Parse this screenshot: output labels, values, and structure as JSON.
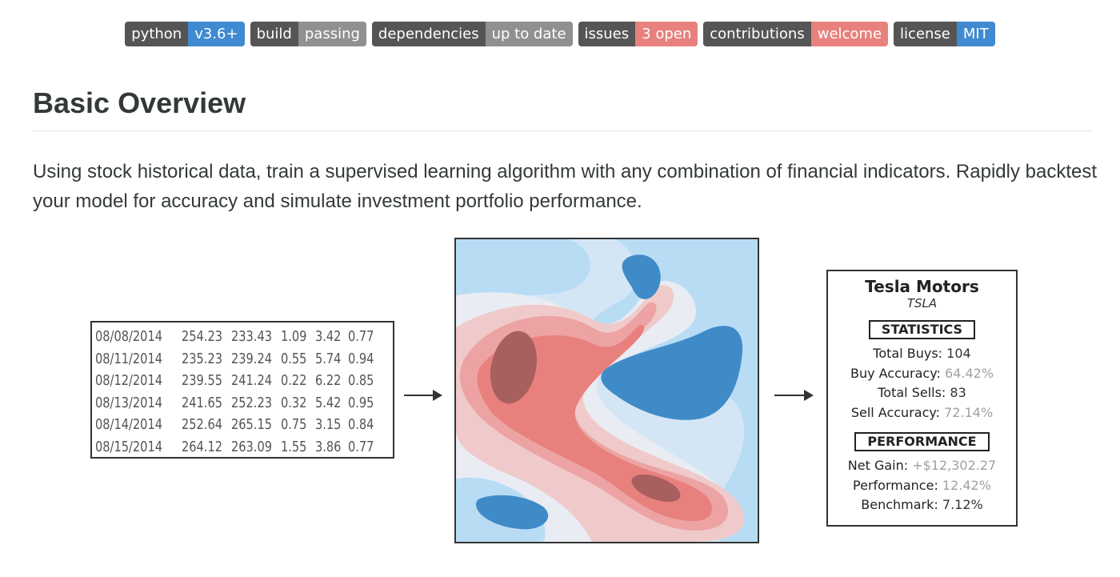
{
  "badges": [
    {
      "label": "python",
      "value": "v3.6+",
      "value_color": "#3f8ad0"
    },
    {
      "label": "build",
      "value": "passing",
      "value_color": "#909090"
    },
    {
      "label": "dependencies",
      "value": "up to date",
      "value_color": "#909090"
    },
    {
      "label": "issues",
      "value": "3 open",
      "value_color": "#e8817d"
    },
    {
      "label": "contributions",
      "value": "welcome",
      "value_color": "#e8817d"
    },
    {
      "label": "license",
      "value": "MIT",
      "value_color": "#3f8ad0"
    }
  ],
  "section": {
    "heading": "Basic Overview",
    "description": "Using stock historical data, train a supervised learning algorithm with any combination of financial indicators. Rapidly backtest your model for accuracy and simulate investment portfolio performance."
  },
  "data_table": {
    "rows": [
      [
        "08/08/2014",
        "254.23",
        "233.43",
        "1.09",
        "3.42",
        "0.77"
      ],
      [
        "08/11/2014",
        "235.23",
        "239.24",
        "0.55",
        "5.74",
        "0.94"
      ],
      [
        "08/12/2014",
        "239.55",
        "241.24",
        "0.22",
        "6.22",
        "0.85"
      ],
      [
        "08/13/2014",
        "241.65",
        "252.23",
        "0.32",
        "5.42",
        "0.95"
      ],
      [
        "08/14/2014",
        "252.64",
        "265.15",
        "0.75",
        "3.15",
        "0.84"
      ],
      [
        "08/15/2014",
        "264.12",
        "263.09",
        "1.55",
        "3.86",
        "0.77"
      ]
    ]
  },
  "heatmap_colors": {
    "blue_light": "#b9dcf5",
    "blue_mid": "#d4e6f5",
    "blue_dark": "#3f8bc8",
    "red_light": "#f0caca",
    "red_mid": "#eda3a3",
    "red_strong": "#e8817d",
    "red_dark": "#a85f5f",
    "neutral": "#e9ecf3"
  },
  "stats_card": {
    "company": "Tesla Motors",
    "ticker": "TSLA",
    "statistics_header": "STATISTICS",
    "statistics": [
      {
        "label": "Total Buys:",
        "value": "104",
        "muted": false
      },
      {
        "label": "Buy Accuracy:",
        "value": "64.42%",
        "muted": true
      },
      {
        "label": "Total Sells:",
        "value": "83",
        "muted": false
      },
      {
        "label": "Sell Accuracy:",
        "value": "72.14%",
        "muted": true
      }
    ],
    "performance_header": "PERFORMANCE",
    "performance": [
      {
        "label": "Net Gain:",
        "value": "+$12,302.27",
        "muted": true
      },
      {
        "label": "Performance:",
        "value": "12.42%",
        "muted": true
      },
      {
        "label": "Benchmark:",
        "value": "7.12%",
        "muted": false
      }
    ]
  }
}
